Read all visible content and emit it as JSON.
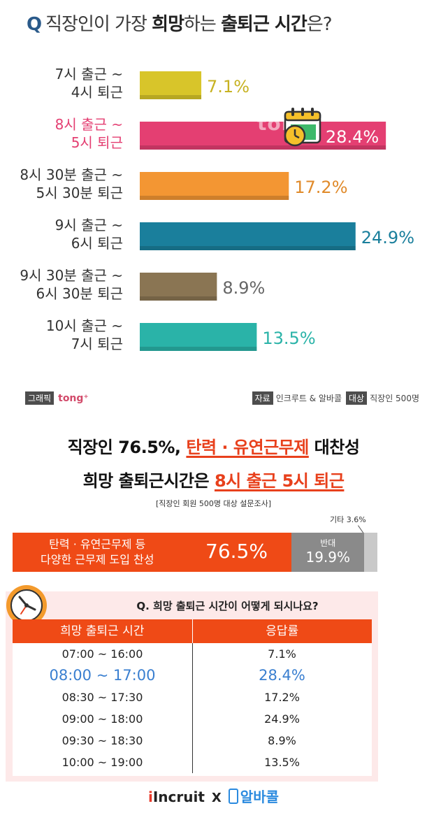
{
  "header": {
    "q_mark": "Q",
    "q_pre": "직장인이 가장 ",
    "q_bold1": "희망",
    "q_mid": "하는 ",
    "q_bold2": "출퇴근 시간",
    "q_post": "은?"
  },
  "chart_data": {
    "type": "bar",
    "orientation": "horizontal",
    "categories": [
      [
        "7시 출근 ~",
        "4시 퇴근"
      ],
      [
        "8시 출근 ~",
        "5시 퇴근"
      ],
      [
        "8시 30분 출근 ~",
        "5시 30분 퇴근"
      ],
      [
        "9시 출근 ~",
        "6시 퇴근"
      ],
      [
        "9시 30분 출근 ~",
        "6시 30분 퇴근"
      ],
      [
        "10시 출근 ~",
        "7시 퇴근"
      ]
    ],
    "values": [
      7.1,
      28.4,
      17.2,
      24.9,
      8.9,
      13.5
    ],
    "value_labels": [
      "7.1%",
      "28.4%",
      "17.2%",
      "24.9%",
      "8.9%",
      "13.5%"
    ],
    "colors": [
      "#d8c52a",
      "#e43f72",
      "#f39633",
      "#1a7f9c",
      "#8a7553",
      "#2ab3a8"
    ],
    "label_colors": [
      "#c7b222",
      "#ffffff",
      "#e08a2a",
      "#1a7f9c",
      "#666666",
      "#2ab3a8"
    ],
    "category_colors": [
      "#333333",
      "#e43f72",
      "#333333",
      "#333333",
      "#333333",
      "#333333"
    ],
    "xlim": [
      0,
      30
    ]
  },
  "top_footer": {
    "graphic_tag": "그래픽",
    "graphic_logo": "tong⁺",
    "source_tag": "자료",
    "source": "인크루트 & 알바콜",
    "target_tag": "대상",
    "target": "직장인 500명"
  },
  "watermark": "tong⁺",
  "headline": {
    "line1_pre": "직장인 76.5%, ",
    "line1_hl": "탄력 · 유연근무제",
    "line1_post": " 대찬성",
    "line2_pre": "희망 출퇴근시간은 ",
    "line2_hl": "8시 출근 5시 퇴근",
    "note": "[직장인 회원 500명 대상 설문조사]"
  },
  "stack": {
    "other_label": "기타 3.6%",
    "a_desc1": "탄력 · 유연근무제 등",
    "a_desc2": "다양한 근무제 도입 찬성",
    "a_pct": "76.5%",
    "a_value": 76.5,
    "b_label": "반대",
    "b_pct": "19.9%",
    "b_value": 19.9,
    "c_value": 3.6
  },
  "table": {
    "question": "Q. 희망 출퇴근 시간이 어떻게 되시나요?",
    "col1": "희망 출퇴근 시간",
    "col2": "응답률",
    "rows": [
      {
        "time": "07:00 ~ 16:00",
        "rate": "7.1%"
      },
      {
        "time": "08:00 ~ 17:00",
        "rate": "28.4%"
      },
      {
        "time": "08:30 ~ 17:30",
        "rate": "17.2%"
      },
      {
        "time": "09:00 ~ 18:00",
        "rate": "24.9%"
      },
      {
        "time": "09:30 ~ 18:30",
        "rate": "8.9%"
      },
      {
        "time": "10:00 ~ 19:00",
        "rate": "13.5%"
      }
    ]
  },
  "logos": {
    "incruit_i": "i",
    "incruit_rest": "Incruit",
    "x": "X",
    "alba": "알바콜"
  }
}
